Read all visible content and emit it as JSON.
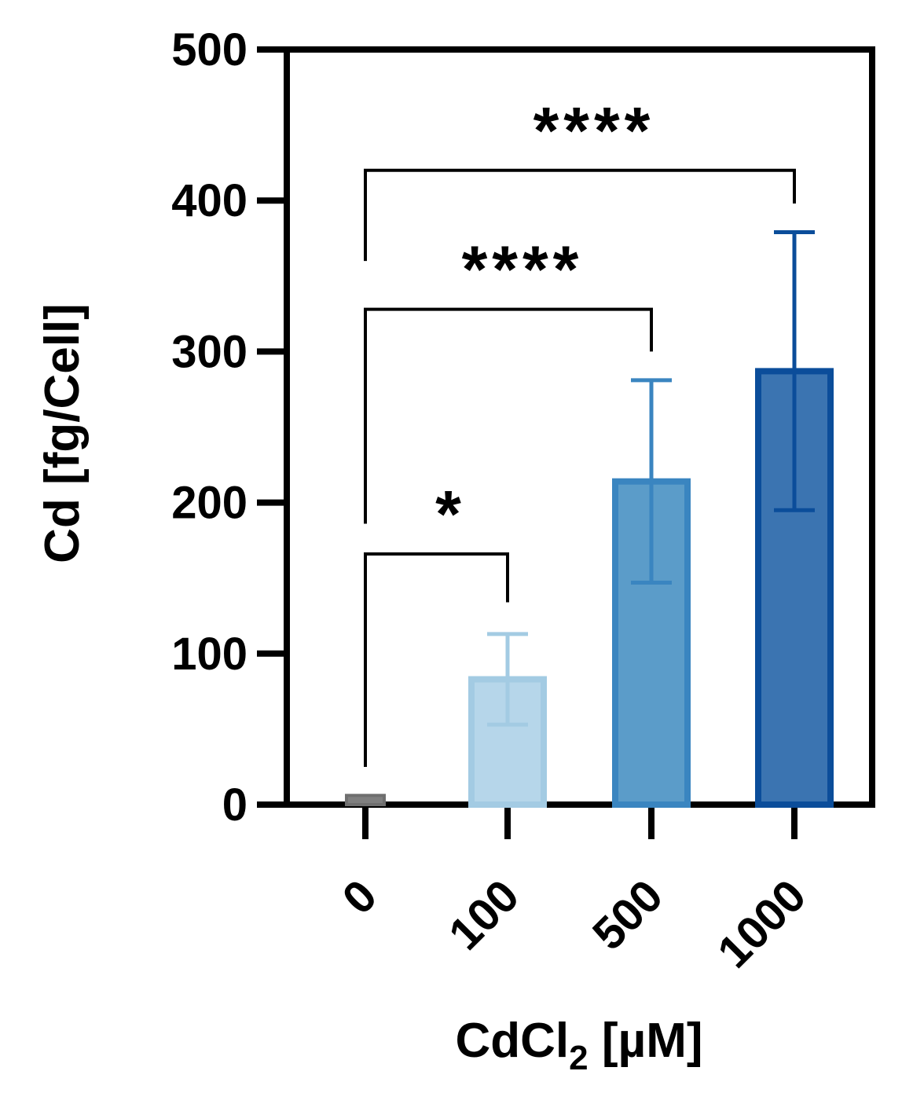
{
  "chart_data": {
    "type": "bar",
    "categories": [
      "0",
      "100",
      "500",
      "1000"
    ],
    "values": [
      4,
      83,
      214,
      287
    ],
    "errors": [
      0,
      30,
      67,
      92
    ],
    "colors": {
      "fill": [
        "#7f7f7f",
        "#b6d6ea",
        "#5b9cc9",
        "#3b74b1"
      ],
      "stroke": [
        "#6f6f6f",
        "#a3cbe3",
        "#3a85c0",
        "#0b4d9a"
      ]
    },
    "title": "",
    "xlabel_main": "CdCl",
    "xlabel_sub": "2",
    "xlabel_rest": " [µM]",
    "ylabel": "Cd [fg/Cell]",
    "ylim": [
      0,
      500
    ],
    "yticks": [
      0,
      100,
      200,
      300,
      400,
      500
    ],
    "grid": false,
    "legend": "none",
    "significance": [
      {
        "from": 0,
        "to": 1,
        "label": "*",
        "bracket_y": 166,
        "left_drop_to": 25,
        "right_drop_to": 134
      },
      {
        "from": 0,
        "to": 2,
        "label": "****",
        "bracket_y": 328,
        "left_drop_to": 186,
        "right_drop_to": 300
      },
      {
        "from": 0,
        "to": 3,
        "label": "****",
        "bracket_y": 420,
        "left_drop_to": 360,
        "right_drop_to": 398
      }
    ]
  }
}
